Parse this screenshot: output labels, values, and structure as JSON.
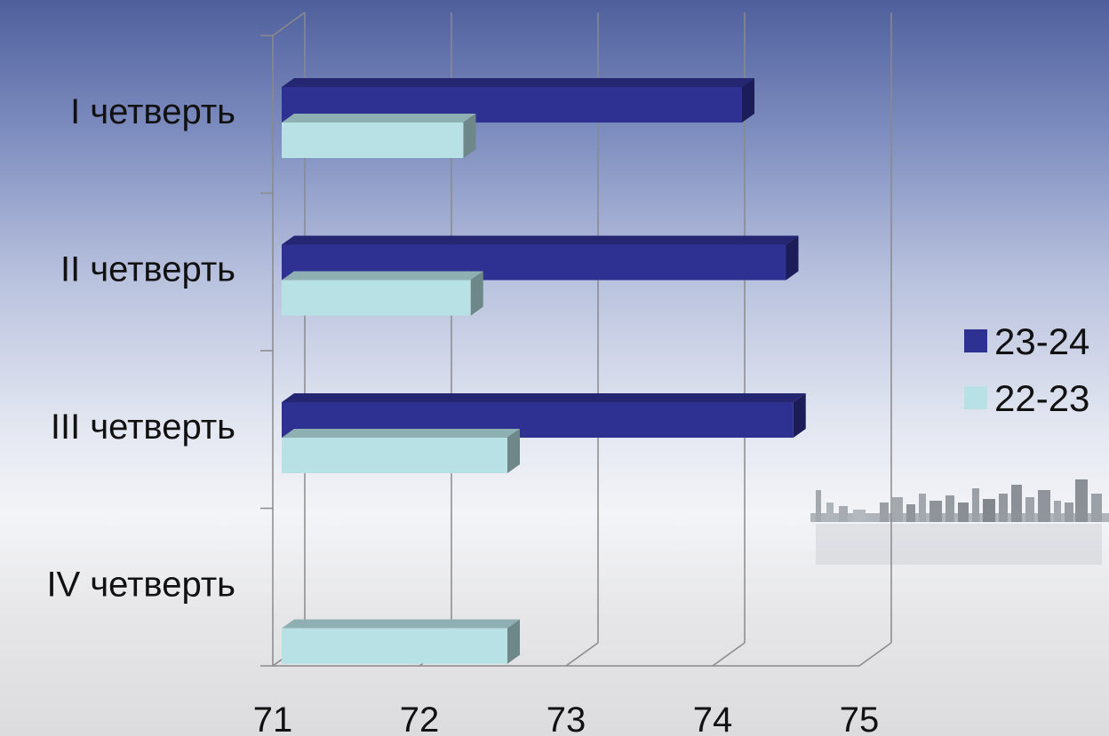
{
  "chart_data": {
    "type": "bar",
    "orientation": "horizontal",
    "style": "3d",
    "categories": [
      "I четверть",
      "II четверть",
      "III четверть",
      "IV четверть"
    ],
    "series": [
      {
        "name": "23-24",
        "values": [
          74.2,
          74.5,
          74.55,
          null
        ],
        "color": "#2e3192"
      },
      {
        "name": "22-23",
        "values": [
          72.3,
          72.35,
          72.6,
          72.6
        ],
        "color": "#b7e1e4"
      }
    ],
    "xlim": [
      71,
      75
    ],
    "x_ticks": [
      "71",
      "72",
      "73",
      "74",
      "75"
    ],
    "grid": true,
    "legend_position": "right"
  }
}
